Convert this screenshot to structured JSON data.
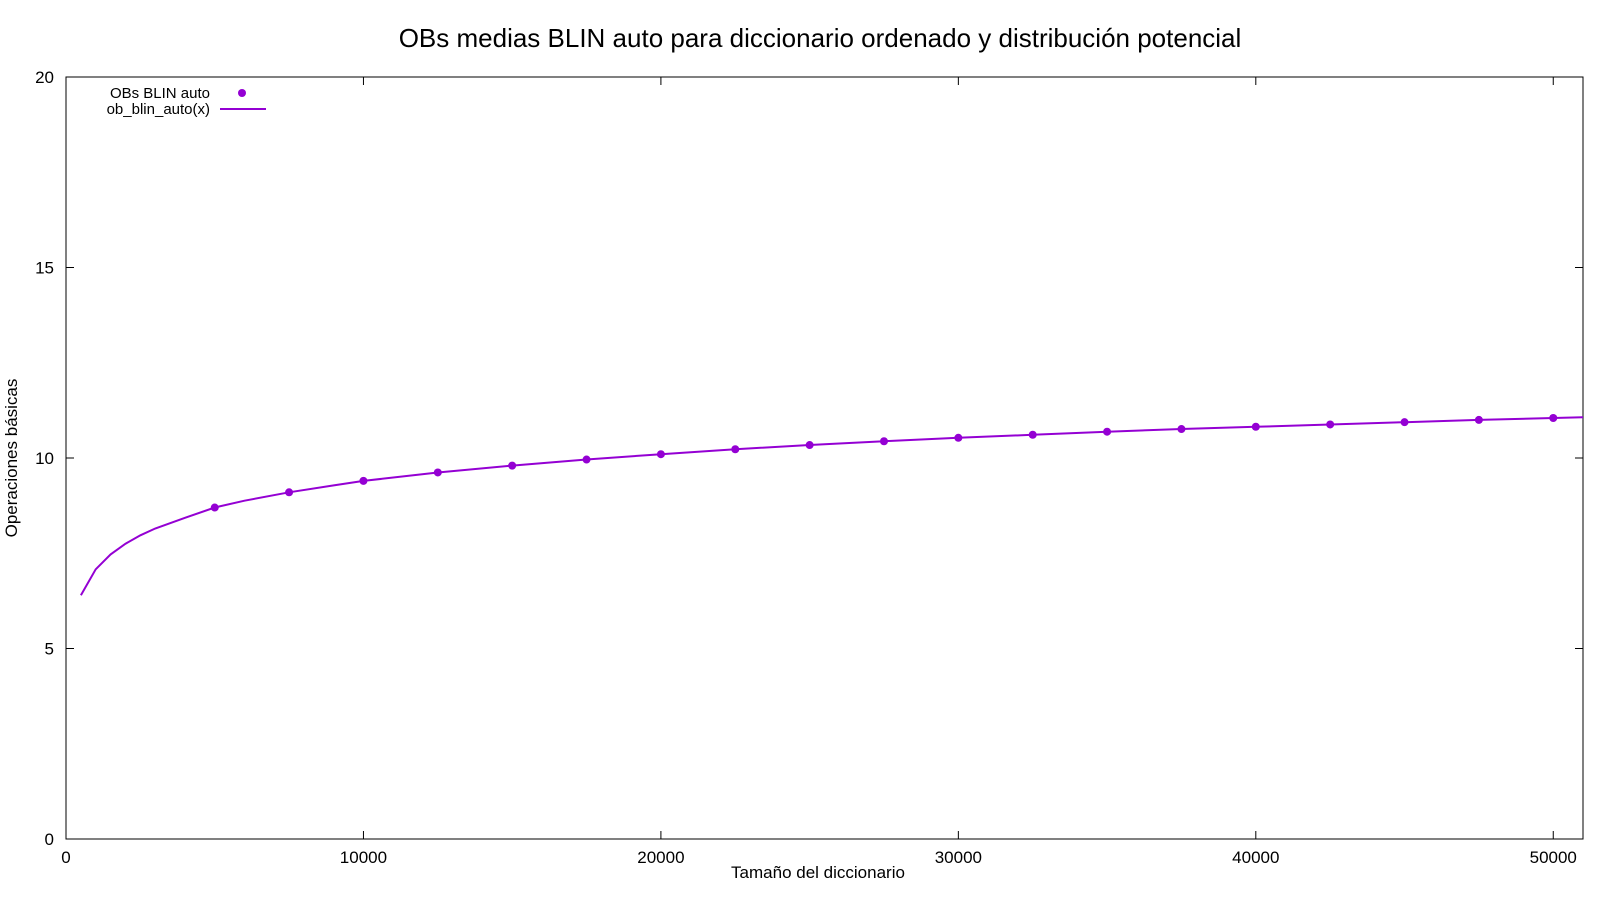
{
  "chart_data": {
    "type": "scatter",
    "title": "OBs medias BLIN auto para diccionario ordenado y distribución potencial",
    "xlabel": "Tamaño del diccionario",
    "ylabel": "Operaciones básicas",
    "xlim": [
      0,
      51000
    ],
    "ylim": [
      0,
      20
    ],
    "x_ticks": [
      0,
      10000,
      20000,
      30000,
      40000,
      50000
    ],
    "x_tick_labels": [
      "0",
      "10000",
      "20000",
      "30000",
      "40000",
      "50000"
    ],
    "y_ticks": [
      0,
      5,
      10,
      15,
      20
    ],
    "y_tick_labels": [
      "0",
      "5",
      "10",
      "15",
      "20"
    ],
    "grid": false,
    "legend_position": "top-left",
    "series": [
      {
        "name": "OBs BLIN auto",
        "kind": "points",
        "color": "#9400d3",
        "x": [
          5000,
          7500,
          10000,
          12500,
          15000,
          17500,
          20000,
          22500,
          25000,
          27500,
          30000,
          32500,
          35000,
          37500,
          40000,
          42500,
          45000,
          47500,
          50000
        ],
        "y": [
          8.7,
          9.1,
          9.4,
          9.62,
          9.8,
          9.96,
          10.1,
          10.23,
          10.34,
          10.44,
          10.53,
          10.61,
          10.69,
          10.76,
          10.82,
          10.88,
          10.94,
          11.0,
          11.05
        ]
      },
      {
        "name": "ob_blin_auto(x)",
        "kind": "line",
        "color": "#9400d3",
        "x": [
          500,
          1000,
          1500,
          2000,
          2500,
          3000,
          4000,
          5000,
          6000,
          7500,
          9000,
          10000,
          12500,
          15000,
          17500,
          20000,
          22500,
          25000,
          27500,
          30000,
          32500,
          35000,
          37500,
          40000,
          42500,
          45000,
          47500,
          50000,
          51000
        ],
        "y": [
          6.4,
          7.08,
          7.47,
          7.75,
          7.97,
          8.15,
          8.43,
          8.7,
          8.88,
          9.1,
          9.28,
          9.4,
          9.62,
          9.8,
          9.96,
          10.1,
          10.23,
          10.34,
          10.44,
          10.53,
          10.61,
          10.69,
          10.76,
          10.82,
          10.88,
          10.94,
          11.0,
          11.05,
          11.07
        ]
      }
    ]
  }
}
